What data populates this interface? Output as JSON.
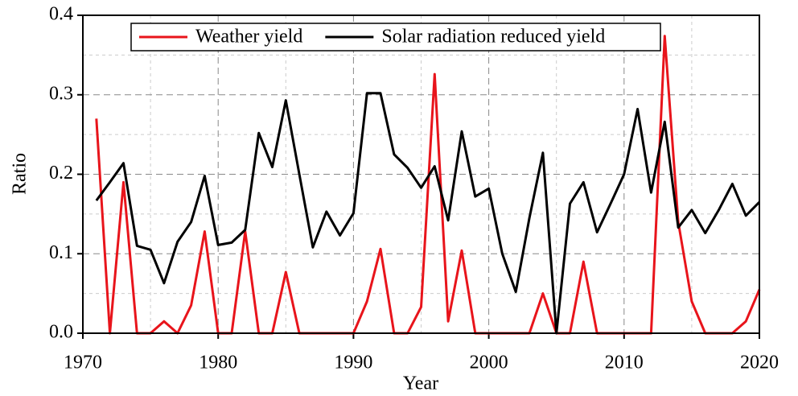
{
  "chart_data": {
    "type": "line",
    "x_label": "Year",
    "y_label": "Ratio",
    "x": [
      1971,
      1972,
      1973,
      1974,
      1975,
      1976,
      1977,
      1978,
      1979,
      1980,
      1981,
      1982,
      1983,
      1984,
      1985,
      1986,
      1987,
      1988,
      1989,
      1990,
      1991,
      1992,
      1993,
      1994,
      1995,
      1996,
      1997,
      1998,
      1999,
      2000,
      2001,
      2002,
      2003,
      2004,
      2005,
      2006,
      2007,
      2008,
      2009,
      2010,
      2011,
      2012,
      2013,
      2014,
      2015,
      2016,
      2017,
      2018,
      2019,
      2020
    ],
    "series": [
      {
        "name": "Weather yield",
        "color": "#e8141b",
        "values": [
          0.27,
          0,
          0.19,
          0,
          0,
          0.015,
          0,
          0.035,
          0.128,
          0,
          0,
          0.128,
          0,
          0,
          0.077,
          0,
          0,
          0,
          0,
          0,
          0.04,
          0.106,
          0,
          0,
          0.033,
          0.326,
          0.015,
          0.104,
          0,
          0,
          0,
          0,
          0,
          0.05,
          0,
          0,
          0.09,
          0,
          0,
          0,
          0,
          0,
          0.374,
          0.14,
          0.04,
          0,
          0,
          0,
          0.015,
          0.055
        ]
      },
      {
        "name": "Solar radiation reduced yield",
        "color": "#000000",
        "values": [
          0.167,
          0.19,
          0.214,
          0.11,
          0.105,
          0.063,
          0.115,
          0.14,
          0.198,
          0.111,
          0.114,
          0.13,
          0.252,
          0.209,
          0.293,
          0.2,
          0.108,
          0.153,
          0.123,
          0.151,
          0.302,
          0.302,
          0.225,
          0.208,
          0.183,
          0.21,
          0.142,
          0.254,
          0.172,
          0.182,
          0.1,
          0.052,
          0.145,
          0.227,
          0,
          0.163,
          0.19,
          0.127,
          0.163,
          0.2,
          0.282,
          0.177,
          0.266,
          0.133,
          0.155,
          0.126,
          0.155,
          0.188,
          0.148,
          0.165
        ]
      }
    ],
    "xlim": [
      1970,
      2020
    ],
    "xticks": [
      1970,
      1980,
      1990,
      2000,
      2010,
      2020
    ],
    "xminor_ticks": [
      1975,
      1985,
      1995,
      2005,
      2015
    ],
    "ylim": [
      0,
      0.4
    ],
    "yticks": [
      {
        "value": 0,
        "label": "0.0"
      },
      0.1,
      0.2,
      0.3,
      0.4
    ],
    "yminor_ticks": [
      0.05,
      0.15,
      0.25,
      0.35
    ],
    "grid": true,
    "legend": "top"
  }
}
